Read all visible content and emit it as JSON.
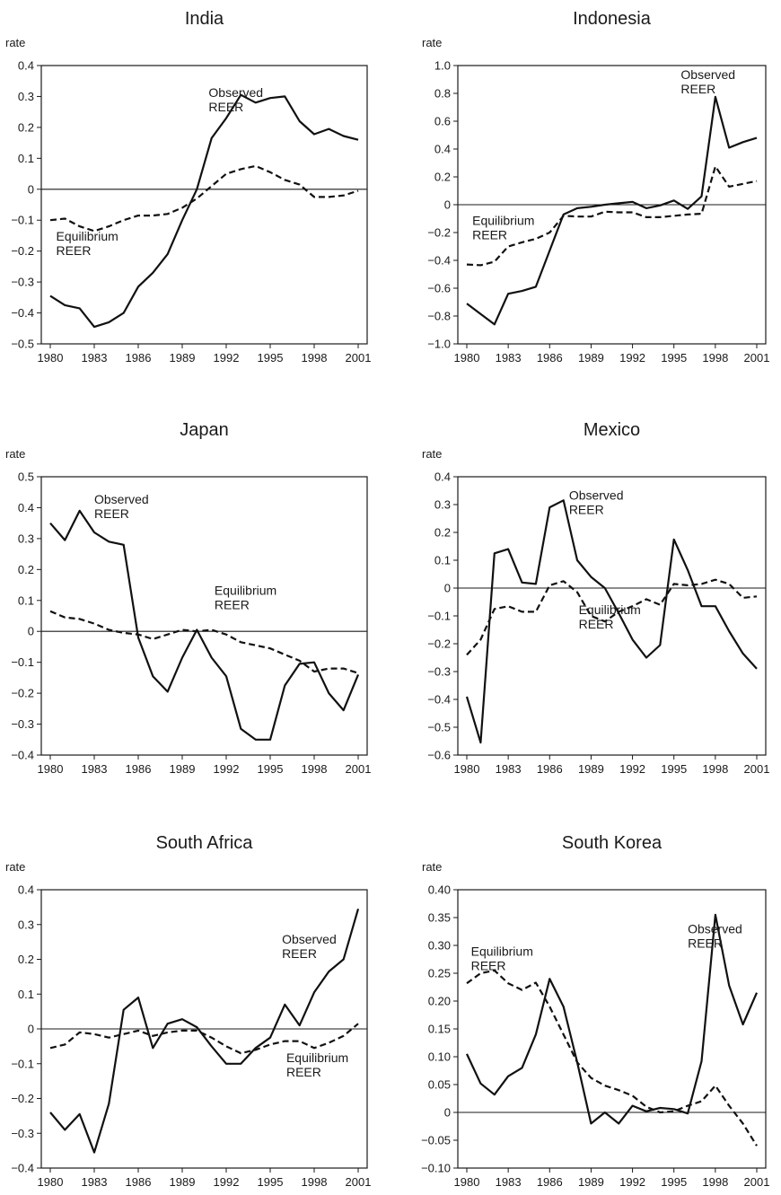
{
  "figure": {
    "chart_data": [
      {
        "type": "line",
        "title": "India",
        "ylabel": "rate",
        "x": [
          1980,
          1981,
          1982,
          1983,
          1984,
          1985,
          1986,
          1987,
          1988,
          1989,
          1990,
          1991,
          1992,
          1993,
          1994,
          1995,
          1996,
          1997,
          1998,
          1999,
          2000,
          2001
        ],
        "xticks": [
          1980,
          1983,
          1986,
          1989,
          1992,
          1995,
          1998,
          2001
        ],
        "ylim": [
          -0.5,
          0.4
        ],
        "yticks": [
          -0.5,
          -0.4,
          -0.3,
          -0.2,
          -0.1,
          0,
          0.1,
          0.2,
          0.3,
          0.4
        ],
        "ytick_labels": [
          "−0.5",
          "−0.4",
          "−0.3",
          "−0.2",
          "−0.1",
          "0",
          "0.1",
          "0.2",
          "0.3",
          "0.4"
        ],
        "series": [
          {
            "values": [
              -0.345,
              -0.375,
              -0.385,
              -0.445,
              -0.43,
              -0.4,
              -0.315,
              -0.27,
              -0.21,
              -0.1,
              0.0,
              0.165,
              0.23,
              0.305,
              0.28,
              0.295,
              0.3,
              0.22,
              0.178,
              0.195,
              0.172,
              0.16
            ],
            "style": "solid"
          },
          {
            "values": [
              -0.1,
              -0.095,
              -0.12,
              -0.135,
              -0.12,
              -0.1,
              -0.085,
              -0.085,
              -0.08,
              -0.06,
              -0.03,
              0.01,
              0.05,
              0.065,
              0.075,
              0.055,
              0.03,
              0.015,
              -0.025,
              -0.025,
              -0.02,
              -0.005
            ],
            "style": "dashed"
          }
        ],
        "annotations": [
          {
            "lines": [
              "Observed",
              "REER"
            ],
            "x": 1990.8,
            "y": 0.31
          },
          {
            "lines": [
              "Equilibrium",
              "REER"
            ],
            "x": 1980.4,
            "y": -0.155
          }
        ]
      },
      {
        "type": "line",
        "title": "Indonesia",
        "ylabel": "rate",
        "x": [
          1980,
          1981,
          1982,
          1983,
          1984,
          1985,
          1986,
          1987,
          1988,
          1989,
          1990,
          1991,
          1992,
          1993,
          1994,
          1995,
          1996,
          1997,
          1998,
          1999,
          2000,
          2001
        ],
        "xticks": [
          1980,
          1983,
          1986,
          1989,
          1992,
          1995,
          1998,
          2001
        ],
        "ylim": [
          -1.0,
          1.0
        ],
        "yticks": [
          -1.0,
          -0.8,
          -0.6,
          -0.4,
          -0.2,
          0,
          0.2,
          0.4,
          0.6,
          0.8,
          1.0
        ],
        "ytick_labels": [
          "−1.0",
          "−0.8",
          "−0.6",
          "−0.4",
          "−0.2",
          "0",
          "0.2",
          "0.4",
          "0.6",
          "0.8",
          "1.0"
        ],
        "series": [
          {
            "values": [
              -0.71,
              -0.785,
              -0.86,
              -0.64,
              -0.62,
              -0.59,
              -0.33,
              -0.07,
              -0.025,
              -0.015,
              0.0,
              0.01,
              0.02,
              -0.025,
              -0.005,
              0.03,
              -0.03,
              0.06,
              0.775,
              0.41,
              0.45,
              0.48
            ],
            "style": "solid"
          },
          {
            "values": [
              -0.43,
              -0.435,
              -0.41,
              -0.3,
              -0.27,
              -0.245,
              -0.2,
              -0.08,
              -0.085,
              -0.085,
              -0.05,
              -0.055,
              -0.055,
              -0.09,
              -0.09,
              -0.08,
              -0.07,
              -0.065,
              0.275,
              0.13,
              0.15,
              0.17
            ],
            "style": "dashed"
          }
        ],
        "annotations": [
          {
            "lines": [
              "Observed",
              "REER"
            ],
            "x": 1995.5,
            "y": 0.93
          },
          {
            "lines": [
              "Equilibrium",
              "REER"
            ],
            "x": 1980.4,
            "y": -0.12
          }
        ]
      },
      {
        "type": "line",
        "title": "Japan",
        "ylabel": "rate",
        "x": [
          1980,
          1981,
          1982,
          1983,
          1984,
          1985,
          1986,
          1987,
          1988,
          1989,
          1990,
          1991,
          1992,
          1993,
          1994,
          1995,
          1996,
          1997,
          1998,
          1999,
          2000,
          2001
        ],
        "xticks": [
          1980,
          1983,
          1986,
          1989,
          1992,
          1995,
          1998,
          2001
        ],
        "ylim": [
          -0.4,
          0.5
        ],
        "yticks": [
          -0.4,
          -0.3,
          -0.2,
          -0.1,
          0,
          0.1,
          0.2,
          0.3,
          0.4,
          0.5
        ],
        "ytick_labels": [
          "−0.4",
          "−0.3",
          "−0.2",
          "−0.1",
          "0",
          "0.1",
          "0.2",
          "0.3",
          "0.4",
          "0.5"
        ],
        "series": [
          {
            "values": [
              0.35,
              0.295,
              0.39,
              0.32,
              0.29,
              0.28,
              -0.02,
              -0.145,
              -0.195,
              -0.085,
              0.005,
              -0.085,
              -0.145,
              -0.315,
              -0.35,
              -0.35,
              -0.175,
              -0.105,
              -0.1,
              -0.2,
              -0.255,
              -0.14
            ],
            "style": "solid"
          },
          {
            "values": [
              0.065,
              0.045,
              0.04,
              0.025,
              0.005,
              -0.005,
              -0.01,
              -0.025,
              -0.01,
              0.005,
              0.0,
              0.005,
              -0.01,
              -0.035,
              -0.045,
              -0.055,
              -0.075,
              -0.095,
              -0.13,
              -0.12,
              -0.12,
              -0.135
            ],
            "style": "dashed"
          }
        ],
        "annotations": [
          {
            "lines": [
              "Observed",
              "REER"
            ],
            "x": 1983.0,
            "y": 0.425
          },
          {
            "lines": [
              "Equilibrium",
              "REER"
            ],
            "x": 1991.2,
            "y": 0.13
          }
        ]
      },
      {
        "type": "line",
        "title": "Mexico",
        "ylabel": "rate",
        "x": [
          1980,
          1981,
          1982,
          1983,
          1984,
          1985,
          1986,
          1987,
          1988,
          1989,
          1990,
          1991,
          1992,
          1993,
          1994,
          1995,
          1996,
          1997,
          1998,
          1999,
          2000,
          2001
        ],
        "xticks": [
          1980,
          1983,
          1986,
          1989,
          1992,
          1995,
          1998,
          2001
        ],
        "ylim": [
          -0.6,
          0.4
        ],
        "yticks": [
          -0.6,
          -0.5,
          -0.4,
          -0.3,
          -0.2,
          -0.1,
          0,
          0.1,
          0.2,
          0.3,
          0.4
        ],
        "ytick_labels": [
          "−0.6",
          "−0.5",
          "−0.4",
          "−0.3",
          "−0.2",
          "−0.1",
          "0",
          "0.1",
          "0.2",
          "0.3",
          "0.4"
        ],
        "series": [
          {
            "values": [
              -0.39,
              -0.555,
              0.125,
              0.14,
              0.02,
              0.015,
              0.29,
              0.315,
              0.1,
              0.04,
              0.0,
              -0.09,
              -0.185,
              -0.25,
              -0.205,
              0.175,
              0.065,
              -0.065,
              -0.065,
              -0.155,
              -0.235,
              -0.29
            ],
            "style": "solid"
          },
          {
            "values": [
              -0.24,
              -0.185,
              -0.075,
              -0.065,
              -0.085,
              -0.085,
              0.01,
              0.025,
              -0.015,
              -0.1,
              -0.12,
              -0.085,
              -0.065,
              -0.04,
              -0.06,
              0.015,
              0.01,
              0.015,
              0.03,
              0.015,
              -0.035,
              -0.03
            ],
            "style": "dashed"
          }
        ],
        "annotations": [
          {
            "lines": [
              "Observed",
              "REER"
            ],
            "x": 1987.4,
            "y": 0.33
          },
          {
            "lines": [
              "Equilibrium",
              "REER"
            ],
            "x": 1988.1,
            "y": -0.08
          }
        ]
      },
      {
        "type": "line",
        "title": "South Africa",
        "ylabel": "rate",
        "x": [
          1980,
          1981,
          1982,
          1983,
          1984,
          1985,
          1986,
          1987,
          1988,
          1989,
          1990,
          1991,
          1992,
          1993,
          1994,
          1995,
          1996,
          1997,
          1998,
          1999,
          2000,
          2001
        ],
        "xticks": [
          1980,
          1983,
          1986,
          1989,
          1992,
          1995,
          1998,
          2001
        ],
        "ylim": [
          -0.4,
          0.4
        ],
        "yticks": [
          -0.4,
          -0.3,
          -0.2,
          -0.1,
          0,
          0.1,
          0.2,
          0.3,
          0.4
        ],
        "ytick_labels": [
          "−0.4",
          "−0.3",
          "−0.2",
          "−0.1",
          "0",
          "0.1",
          "0.2",
          "0.3",
          "0.4"
        ],
        "series": [
          {
            "values": [
              -0.24,
              -0.29,
              -0.245,
              -0.355,
              -0.215,
              0.055,
              0.09,
              -0.055,
              0.015,
              0.028,
              0.005,
              -0.05,
              -0.1,
              -0.1,
              -0.055,
              -0.025,
              0.07,
              0.01,
              0.105,
              0.165,
              0.2,
              0.345
            ],
            "style": "solid"
          },
          {
            "values": [
              -0.055,
              -0.045,
              -0.01,
              -0.015,
              -0.025,
              -0.015,
              -0.005,
              -0.02,
              -0.01,
              -0.005,
              -0.005,
              -0.025,
              -0.05,
              -0.07,
              -0.06,
              -0.045,
              -0.035,
              -0.035,
              -0.055,
              -0.04,
              -0.02,
              0.015
            ],
            "style": "dashed"
          }
        ],
        "annotations": [
          {
            "lines": [
              "Observed",
              "REER"
            ],
            "x": 1995.8,
            "y": 0.255
          },
          {
            "lines": [
              "Equilibrium",
              "REER"
            ],
            "x": 1996.1,
            "y": -0.085
          }
        ]
      },
      {
        "type": "line",
        "title": "South Korea",
        "ylabel": "rate",
        "x": [
          1980,
          1981,
          1982,
          1983,
          1984,
          1985,
          1986,
          1987,
          1988,
          1989,
          1990,
          1991,
          1992,
          1993,
          1994,
          1995,
          1996,
          1997,
          1998,
          1999,
          2000,
          2001
        ],
        "xticks": [
          1980,
          1983,
          1986,
          1989,
          1992,
          1995,
          1998,
          2001
        ],
        "ylim": [
          -0.1,
          0.4
        ],
        "yticks": [
          -0.1,
          -0.05,
          0,
          0.05,
          0.1,
          0.15,
          0.2,
          0.25,
          0.3,
          0.35,
          0.4
        ],
        "ytick_labels": [
          "−0.10",
          "−0.05",
          "0",
          "0.05",
          "0.10",
          "0.15",
          "0.20",
          "0.25",
          "0.30",
          "0.35",
          "0.40"
        ],
        "series": [
          {
            "values": [
              0.105,
              0.052,
              0.032,
              0.065,
              0.08,
              0.14,
              0.24,
              0.19,
              0.09,
              -0.02,
              0.0,
              -0.02,
              0.012,
              0.002,
              0.008,
              0.006,
              -0.002,
              0.092,
              0.355,
              0.228,
              0.158,
              0.215
            ],
            "style": "solid"
          },
          {
            "values": [
              0.232,
              0.25,
              0.255,
              0.232,
              0.22,
              0.233,
              0.19,
              0.14,
              0.09,
              0.062,
              0.048,
              0.04,
              0.03,
              0.01,
              0.0,
              0.002,
              0.012,
              0.02,
              0.048,
              0.012,
              -0.02,
              -0.06
            ],
            "style": "dashed"
          }
        ],
        "annotations": [
          {
            "lines": [
              "Observed",
              "REER"
            ],
            "x": 1996.0,
            "y": 0.328
          },
          {
            "lines": [
              "Equilibrium",
              "REER"
            ],
            "x": 1980.3,
            "y": 0.288
          }
        ]
      }
    ]
  }
}
